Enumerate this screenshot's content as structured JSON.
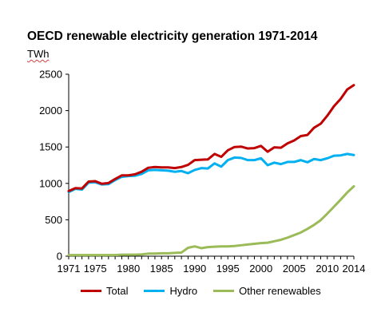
{
  "chart_data": {
    "type": "line",
    "title": "OECD renewable electricity generation 1971-2014",
    "ylabel": "TWh",
    "xlabel": "",
    "x": [
      1971,
      1972,
      1973,
      1974,
      1975,
      1976,
      1977,
      1978,
      1979,
      1980,
      1981,
      1982,
      1983,
      1984,
      1985,
      1986,
      1987,
      1988,
      1989,
      1990,
      1991,
      1992,
      1993,
      1994,
      1995,
      1996,
      1997,
      1998,
      1999,
      2000,
      2001,
      2002,
      2003,
      2004,
      2005,
      2006,
      2007,
      2008,
      2009,
      2010,
      2011,
      2012,
      2013,
      2014
    ],
    "x_ticks": [
      "1971",
      "1975",
      "1980",
      "1985",
      "1990",
      "1995",
      "2000",
      "2005",
      "2010",
      "2014"
    ],
    "y_ticks": [
      "0",
      "500",
      "1000",
      "1500",
      "2000",
      "2500"
    ],
    "ylim": [
      0,
      2500
    ],
    "grid": false,
    "legend_position": "bottom",
    "series": [
      {
        "name": "Total",
        "color": "#c00000",
        "values": [
          895,
          935,
          930,
          1025,
          1030,
          995,
          1005,
          1060,
          1110,
          1110,
          1125,
          1160,
          1215,
          1225,
          1220,
          1220,
          1210,
          1225,
          1255,
          1320,
          1325,
          1330,
          1405,
          1365,
          1455,
          1500,
          1505,
          1480,
          1485,
          1515,
          1435,
          1495,
          1490,
          1550,
          1590,
          1650,
          1665,
          1765,
          1820,
          1930,
          2060,
          2160,
          2290,
          2350
        ]
      },
      {
        "name": "Hydro",
        "color": "#00b0f0",
        "values": [
          880,
          925,
          915,
          1010,
          1015,
          985,
          990,
          1045,
          1090,
          1100,
          1105,
          1130,
          1180,
          1185,
          1180,
          1175,
          1160,
          1170,
          1140,
          1185,
          1210,
          1205,
          1275,
          1230,
          1320,
          1355,
          1350,
          1320,
          1320,
          1345,
          1250,
          1285,
          1265,
          1295,
          1295,
          1320,
          1290,
          1335,
          1320,
          1345,
          1380,
          1385,
          1405,
          1390
        ]
      },
      {
        "name": "Other renewables",
        "color": "#9bbb59",
        "values": [
          15,
          15,
          15,
          15,
          15,
          15,
          15,
          15,
          20,
          20,
          20,
          25,
          35,
          35,
          40,
          40,
          45,
          50,
          115,
          135,
          110,
          125,
          130,
          135,
          135,
          140,
          150,
          160,
          170,
          180,
          185,
          205,
          225,
          255,
          290,
          325,
          375,
          430,
          495,
          585,
          680,
          775,
          875,
          960
        ]
      }
    ]
  }
}
